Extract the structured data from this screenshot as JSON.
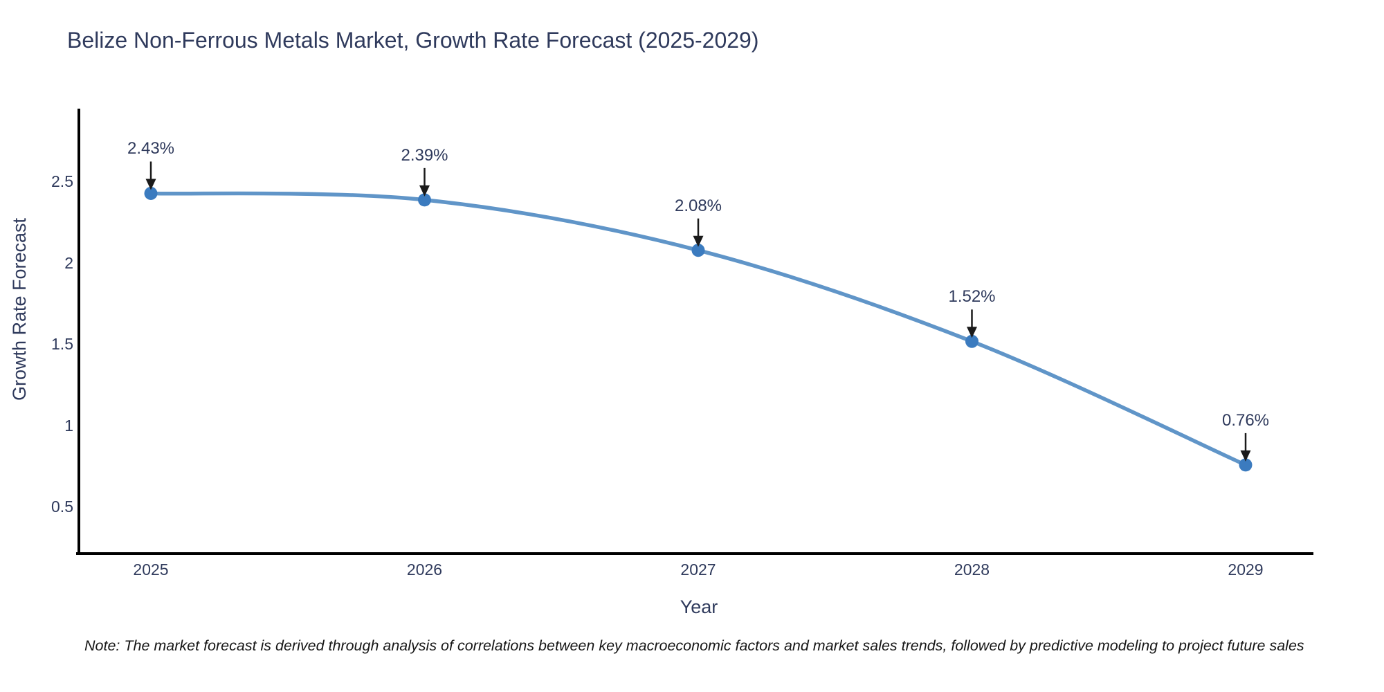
{
  "chart": {
    "title": "Belize Non-Ferrous Metals Market, Growth Rate Forecast (2025-2029)",
    "xlabel": "Year",
    "ylabel": "Growth Rate Forecast",
    "note": "Note: The market forecast is derived through analysis of correlations between key macroeconomic factors and market sales trends, followed by predictive modeling to project future sales"
  },
  "chart_data": {
    "type": "line",
    "title": "Belize Non-Ferrous Metals Market, Growth Rate Forecast (2025-2029)",
    "xlabel": "Year",
    "ylabel": "Growth Rate Forecast",
    "x": [
      2025,
      2026,
      2027,
      2028,
      2029
    ],
    "series": [
      {
        "name": "Growth Rate Forecast",
        "values": [
          2.43,
          2.39,
          2.08,
          1.52,
          0.76
        ]
      }
    ],
    "point_labels": [
      "2.43%",
      "2.39%",
      "2.08%",
      "1.52%",
      "0.76%"
    ],
    "x_tick_labels": [
      "2025",
      "2026",
      "2027",
      "2028",
      "2029"
    ],
    "y_tick_values": [
      2.5,
      2,
      1.5,
      1,
      0.5
    ],
    "ylim": [
      0.2,
      2.95
    ],
    "grid": false,
    "legend": false,
    "line_shape": "spline",
    "annotations": "arrow-down-to-point",
    "colors": {
      "line": "#4f89c2",
      "marker": "#3b7bbf",
      "axis": "#000000",
      "arrow": "#1a1a1a",
      "text": "#2f3a5c",
      "note_text": "#161616",
      "background": "#ffffff"
    }
  }
}
